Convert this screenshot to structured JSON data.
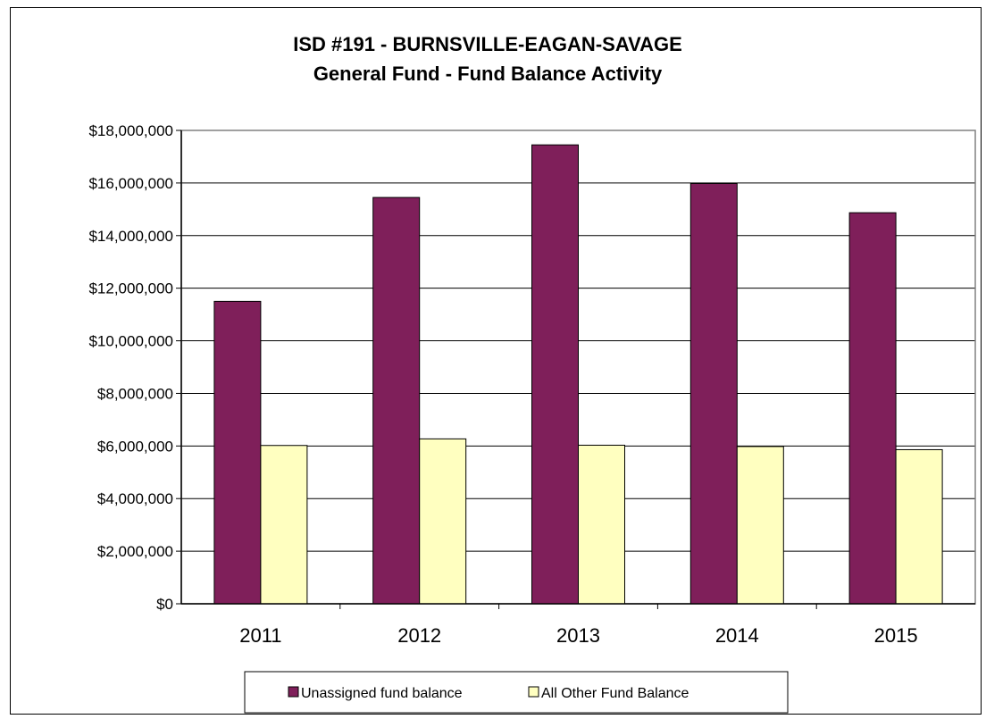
{
  "chart_data": {
    "type": "bar",
    "title": "ISD #191 - BURNSVILLE-EAGAN-SAVAGE",
    "subtitle": "General Fund - Fund Balance Activity",
    "categories": [
      "2011",
      "2012",
      "2013",
      "2014",
      "2015"
    ],
    "series": [
      {
        "name": "Unassigned fund balance",
        "values": [
          11500000,
          15450000,
          17450000,
          15980000,
          14870000
        ],
        "color": "#7f1f5a"
      },
      {
        "name": "All Other Fund Balance",
        "values": [
          6020000,
          6270000,
          6030000,
          5980000,
          5860000
        ],
        "color": "#ffffc0"
      }
    ],
    "ylim": [
      0,
      18000000
    ],
    "yticks": [
      0,
      2000000,
      4000000,
      6000000,
      8000000,
      10000000,
      12000000,
      14000000,
      16000000,
      18000000
    ],
    "ytick_labels": [
      "$0",
      "$2,000,000",
      "$4,000,000",
      "$6,000,000",
      "$8,000,000",
      "$10,000,000",
      "$12,000,000",
      "$14,000,000",
      "$16,000,000",
      "$18,000,000"
    ],
    "grid": true,
    "legend_position": "bottom"
  }
}
